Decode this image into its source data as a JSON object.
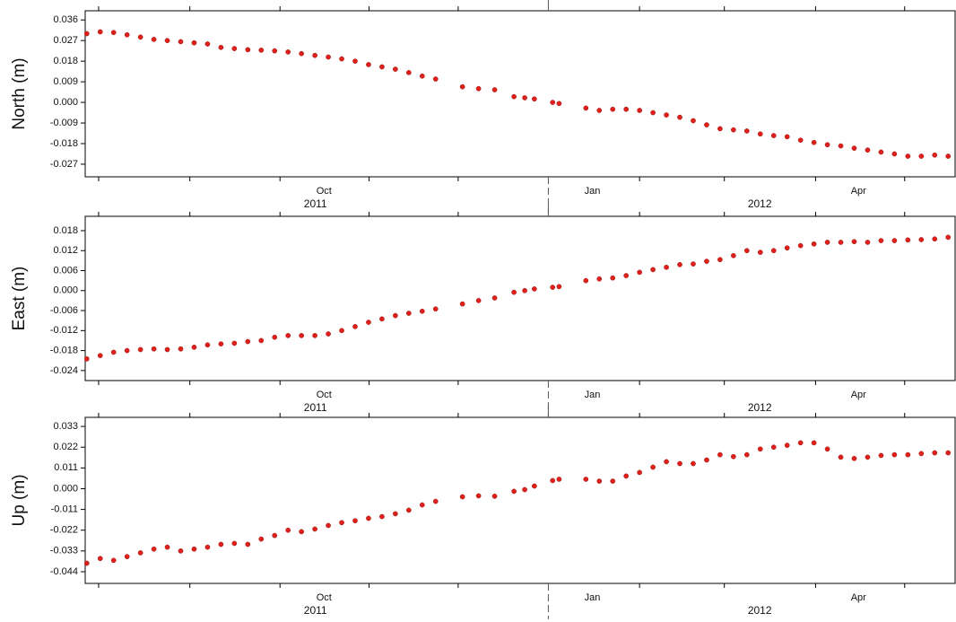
{
  "chart_data": [
    {
      "type": "scatter",
      "ylabel": "North (m)",
      "color": "#e0201b",
      "xlim": [
        2011.5685,
        2012.379
      ],
      "ylim": [
        -0.0325,
        0.04
      ],
      "yticks": [
        0.036,
        0.027,
        0.018,
        0.009,
        {
          "value": 0,
          "label": "0.000"
        },
        -0.009,
        -0.018,
        -0.027
      ],
      "xticks": [
        {
          "value": 2011.791,
          "label": "Oct"
        },
        {
          "value": 2012.041,
          "label": "Jan"
        },
        {
          "value": 2012.289,
          "label": "Apr"
        }
      ],
      "xminor": [
        2011.581,
        2011.666,
        2011.75,
        2011.833,
        2011.916,
        2012.085,
        2012.164,
        2012.249,
        2012.332
      ],
      "year_ticks": [
        2012
      ],
      "year_labels": [
        {
          "value": 2011.783,
          "label": "2011"
        },
        {
          "value": 2012.197,
          "label": "2012"
        }
      ],
      "x": [
        2011.57,
        2011.5825,
        2011.595,
        2011.6075,
        2011.62,
        2011.6325,
        2011.645,
        2011.6575,
        2011.67,
        2011.6825,
        2011.695,
        2011.7075,
        2011.72,
        2011.7325,
        2011.745,
        2011.7575,
        2011.77,
        2011.7825,
        2011.795,
        2011.8075,
        2011.82,
        2011.8325,
        2011.845,
        2011.8575,
        2011.87,
        2011.8825,
        2011.895,
        2011.92,
        2011.935,
        2011.95,
        2011.968,
        2011.978,
        2011.987,
        2012.004,
        2012.01,
        2012.035,
        2012.0475,
        2012.06,
        2012.0725,
        2012.085,
        2012.0975,
        2012.11,
        2012.1225,
        2012.135,
        2012.1475,
        2012.16,
        2012.1725,
        2012.185,
        2012.1975,
        2012.21,
        2012.2225,
        2012.235,
        2012.2475,
        2012.26,
        2012.2725,
        2012.285,
        2012.2975,
        2012.31,
        2012.3225,
        2012.335,
        2012.3475,
        2012.36,
        2012.3725
      ],
      "values": [
        0.03,
        0.0308,
        0.0305,
        0.0295,
        0.0285,
        0.0275,
        0.027,
        0.0265,
        0.026,
        0.0255,
        0.024,
        0.0235,
        0.023,
        0.0228,
        0.0225,
        0.022,
        0.0213,
        0.0205,
        0.0198,
        0.019,
        0.018,
        0.0165,
        0.0155,
        0.0145,
        0.013,
        0.0115,
        0.0102,
        0.0068,
        0.006,
        0.0055,
        0.0025,
        0.002,
        0.0015,
        0,
        -0.0005,
        -0.0025,
        -0.0035,
        -0.003,
        -0.003,
        -0.0035,
        -0.0045,
        -0.0055,
        -0.0065,
        -0.008,
        -0.0098,
        -0.0115,
        -0.012,
        -0.0125,
        -0.0138,
        -0.0145,
        -0.015,
        -0.0165,
        -0.0175,
        -0.0185,
        -0.019,
        -0.02,
        -0.0208,
        -0.0217,
        -0.0225,
        -0.0235,
        -0.0235,
        -0.023,
        -0.0235
      ]
    },
    {
      "type": "scatter",
      "ylabel": "East (m)",
      "color": "#e0201b",
      "xlim": [
        2011.5685,
        2012.379
      ],
      "ylim": [
        -0.027,
        0.0223
      ],
      "yticks": [
        0.018,
        0.012,
        0.006,
        {
          "value": 0,
          "label": "0.000"
        },
        -0.006,
        -0.012,
        -0.018,
        -0.024
      ],
      "xticks": [
        {
          "value": 2011.791,
          "label": "Oct"
        },
        {
          "value": 2012.041,
          "label": "Jan"
        },
        {
          "value": 2012.289,
          "label": "Apr"
        }
      ],
      "xminor": [
        2011.581,
        2011.666,
        2011.75,
        2011.833,
        2011.916,
        2012.085,
        2012.164,
        2012.249,
        2012.332
      ],
      "year_ticks": [
        2012
      ],
      "year_labels": [
        {
          "value": 2011.783,
          "label": "2011"
        },
        {
          "value": 2012.197,
          "label": "2012"
        }
      ],
      "x": [
        2011.57,
        2011.5825,
        2011.595,
        2011.6075,
        2011.62,
        2011.6325,
        2011.645,
        2011.6575,
        2011.67,
        2011.6825,
        2011.695,
        2011.7075,
        2011.72,
        2011.7325,
        2011.745,
        2011.7575,
        2011.77,
        2011.7825,
        2011.795,
        2011.8075,
        2011.82,
        2011.8325,
        2011.845,
        2011.8575,
        2011.87,
        2011.8825,
        2011.895,
        2011.92,
        2011.935,
        2011.95,
        2011.968,
        2011.978,
        2011.987,
        2012.004,
        2012.01,
        2012.035,
        2012.0475,
        2012.06,
        2012.0725,
        2012.085,
        2012.0975,
        2012.11,
        2012.1225,
        2012.135,
        2012.1475,
        2012.16,
        2012.1725,
        2012.185,
        2012.1975,
        2012.21,
        2012.2225,
        2012.235,
        2012.2475,
        2012.26,
        2012.2725,
        2012.285,
        2012.2975,
        2012.31,
        2012.3225,
        2012.335,
        2012.3475,
        2012.36,
        2012.3725
      ],
      "values": [
        -0.0205,
        -0.0195,
        -0.0185,
        -0.018,
        -0.0177,
        -0.0175,
        -0.0177,
        -0.0175,
        -0.017,
        -0.0163,
        -0.016,
        -0.0158,
        -0.0153,
        -0.015,
        -0.014,
        -0.0135,
        -0.0135,
        -0.0135,
        -0.013,
        -0.012,
        -0.0108,
        -0.0095,
        -0.0085,
        -0.0075,
        -0.0068,
        -0.0062,
        -0.0055,
        -0.004,
        -0.003,
        -0.0022,
        -0.0005,
        0,
        0.0005,
        0.001,
        0.0012,
        0.003,
        0.0035,
        0.0038,
        0.0045,
        0.0055,
        0.0063,
        0.007,
        0.0078,
        0.008,
        0.0088,
        0.0093,
        0.0105,
        0.012,
        0.0115,
        0.012,
        0.0128,
        0.0135,
        0.014,
        0.0145,
        0.0145,
        0.0147,
        0.0145,
        0.015,
        0.015,
        0.0152,
        0.0153,
        0.0155,
        0.016
      ]
    },
    {
      "type": "scatter",
      "ylabel": "Up (m)",
      "color": "#e0201b",
      "xlim": [
        2011.5685,
        2012.379
      ],
      "ylim": [
        -0.0502,
        0.0378
      ],
      "yticks": [
        0.033,
        0.022,
        0.011,
        {
          "value": 0,
          "label": "0.000"
        },
        -0.011,
        -0.022,
        -0.033,
        -0.044
      ],
      "xticks": [
        {
          "value": 2011.791,
          "label": "Oct"
        },
        {
          "value": 2012.041,
          "label": "Jan"
        },
        {
          "value": 2012.289,
          "label": "Apr"
        }
      ],
      "xminor": [
        2011.581,
        2011.666,
        2011.75,
        2011.833,
        2011.916,
        2012.085,
        2012.164,
        2012.249,
        2012.332
      ],
      "year_ticks": [
        2012
      ],
      "year_labels": [
        {
          "value": 2011.783,
          "label": "2011"
        },
        {
          "value": 2012.197,
          "label": "2012"
        }
      ],
      "x": [
        2011.57,
        2011.5825,
        2011.595,
        2011.6075,
        2011.62,
        2011.6325,
        2011.645,
        2011.6575,
        2011.67,
        2011.6825,
        2011.695,
        2011.7075,
        2011.72,
        2011.7325,
        2011.745,
        2011.7575,
        2011.77,
        2011.7825,
        2011.795,
        2011.8075,
        2011.82,
        2011.8325,
        2011.845,
        2011.8575,
        2011.87,
        2011.8825,
        2011.895,
        2011.92,
        2011.935,
        2011.95,
        2011.968,
        2011.978,
        2011.987,
        2012.004,
        2012.01,
        2012.035,
        2012.0475,
        2012.06,
        2012.0725,
        2012.085,
        2012.0975,
        2012.11,
        2012.1225,
        2012.135,
        2012.1475,
        2012.16,
        2012.1725,
        2012.185,
        2012.1975,
        2012.21,
        2012.2225,
        2012.235,
        2012.2475,
        2012.26,
        2012.2725,
        2012.285,
        2012.2975,
        2012.31,
        2012.3225,
        2012.335,
        2012.3475,
        2012.36,
        2012.3725
      ],
      "values": [
        -0.0395,
        -0.037,
        -0.038,
        -0.036,
        -0.034,
        -0.032,
        -0.031,
        -0.033,
        -0.032,
        -0.031,
        -0.0295,
        -0.029,
        -0.0295,
        -0.0267,
        -0.0248,
        -0.022,
        -0.0228,
        -0.0214,
        -0.0195,
        -0.018,
        -0.017,
        -0.0157,
        -0.0148,
        -0.0133,
        -0.0114,
        -0.0086,
        -0.0067,
        -0.0043,
        -0.0038,
        -0.004,
        -0.0014,
        -0.0005,
        0.0014,
        0.0043,
        0.005,
        0.005,
        0.004,
        0.004,
        0.0067,
        0.0086,
        0.0114,
        0.0143,
        0.0133,
        0.0133,
        0.0152,
        0.018,
        0.017,
        0.018,
        0.021,
        0.022,
        0.023,
        0.0243,
        0.0243,
        0.021,
        0.0167,
        0.016,
        0.0167,
        0.0176,
        0.018,
        0.018,
        0.0186,
        0.019,
        0.019
      ]
    }
  ]
}
